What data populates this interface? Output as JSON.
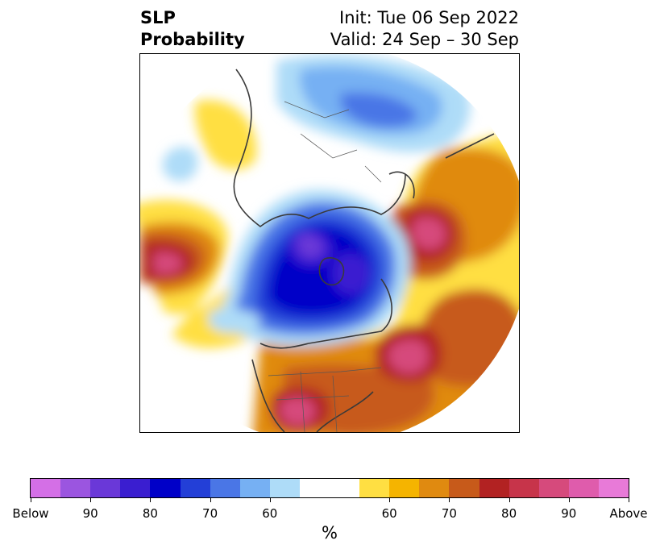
{
  "title": {
    "left_line1": "SLP",
    "left_line2": "Probability",
    "right_line1": "Init: Tue 06 Sep 2022",
    "right_line2": "Valid: 24 Sep – 30 Sep"
  },
  "colorbar": {
    "unit": "%",
    "colors": [
      "#d46fe6",
      "#9b55e0",
      "#6a38d8",
      "#3a1ed0",
      "#0000c8",
      "#233fd7",
      "#4a76e6",
      "#76b0f3",
      "#aedcf8",
      "#ffffff",
      "#ffffff",
      "#ffdf42",
      "#f5b400",
      "#e08a10",
      "#c75a1a",
      "#b22222",
      "#c7344a",
      "#d64a7c",
      "#df5cac",
      "#e87ad8"
    ],
    "tick_labels": [
      "Below",
      "90",
      "80",
      "70",
      "60",
      "60",
      "70",
      "80",
      "90",
      "Above"
    ]
  },
  "map": {
    "projection": "north-polar-stereographic",
    "colors": {
      "below_strong": "#0000c8",
      "below_core": "#6a38d8",
      "above_strong": "#b22222",
      "above_core": "#d64a7c",
      "coast": "#3a3a3a"
    }
  }
}
